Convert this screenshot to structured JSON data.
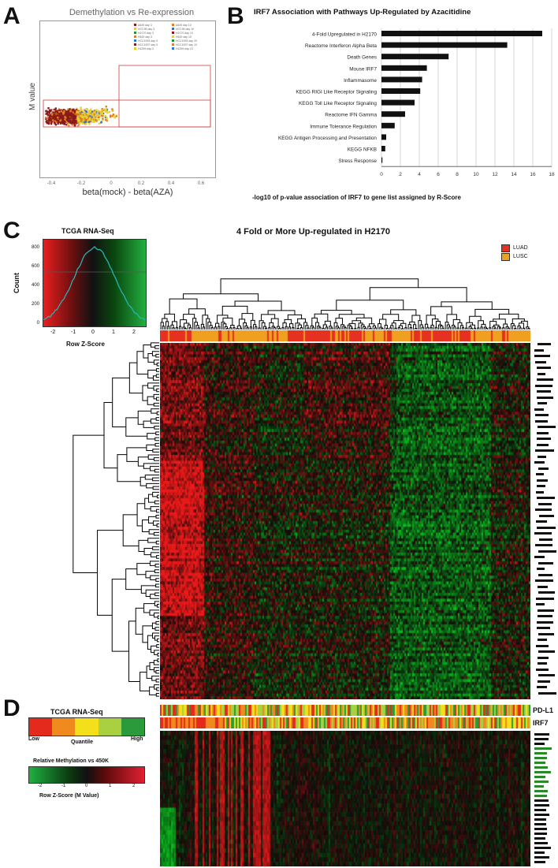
{
  "panels": {
    "a": "A",
    "b": "B",
    "c": "C",
    "d": "D"
  },
  "panel_a": {
    "title": "Demethylation vs Re-expression",
    "xlabel": "beta(mock) - beta(AZA)",
    "ylabel": "M value",
    "legend": [
      "A549 day 3",
      "A549 day 10",
      "HCC95 day 3",
      "HCC95 day 10",
      "H2170 day 3",
      "H2170 day 10",
      "H520 day 3",
      "H520 day 10",
      "HCC1993 day 3",
      "HCC1993 day 10",
      "HCC1937 day 3",
      "HCC1937 day 10",
      "H1299 day 3",
      "H1299 day 10"
    ],
    "colors": {
      "red": "#8b1a1a",
      "orange": "#e08020",
      "yellow": "#e8d030",
      "blue": "#3a70c8",
      "green": "#2a9040"
    }
  },
  "chart_data": {
    "type": "bar",
    "title": "IRF7 Association with Pathways Up-Regulated by Azacitidine",
    "xlabel": "-log10 of p-value association of IRF7 to gene list assigned by R-Score",
    "xlim": [
      0,
      18
    ],
    "xticks": [
      "0",
      "2",
      "4",
      "6",
      "8",
      "10",
      "12",
      "14",
      "16",
      "18"
    ],
    "categories": [
      "4-Fold Upregulated in H2170",
      "Reactome Interferon Alpha Beta",
      "Death Genes",
      "Mouse IRF7",
      "Inflammasome",
      "KEGG RIGI Like Receptor Signaling",
      "KEGG Toll Like Receptor Signaling",
      "Reactome IFN Gamma",
      "Immune Tolerance Regulation",
      "KEGG Antigen Processing and Presentation",
      "KEGG NFKB",
      "Stress Response"
    ],
    "values": [
      17.0,
      13.3,
      7.1,
      4.8,
      4.3,
      4.1,
      3.5,
      2.5,
      1.4,
      0.5,
      0.4,
      0.1
    ],
    "grid": true
  },
  "panel_c": {
    "title": "4 Fold or More Up-regulated in H2170",
    "density_title": "TCGA RNA-Seq",
    "density_xlabel": "Row Z-Score",
    "density_ylabel": "Count",
    "xticks": [
      "-2",
      "-1",
      "0",
      "1",
      "2"
    ],
    "yticks": [
      "0",
      "200",
      "400",
      "600",
      "800"
    ],
    "legend": [
      {
        "label": "LUAD",
        "color": "#e63020"
      },
      {
        "label": "LUSC",
        "color": "#f0a020"
      }
    ],
    "gene_count": 124
  },
  "panel_d": {
    "rnaseq_title": "TCGA RNA-Seq",
    "rnaseq_low": "Low",
    "rnaseq_high": "High",
    "rnaseq_mid": "Quantile",
    "meth_title": "Relative Methylation vs 450K",
    "meth_xlabel": "Row Z-Score (M Value)",
    "meth_ticks": [
      "-2",
      "-1",
      "0",
      "1",
      "2"
    ],
    "row_labels": [
      "PD-L1",
      "IRF7"
    ],
    "quantile_colors": [
      "#e42a1c",
      "#f18a1e",
      "#f4e01a",
      "#a8d040",
      "#2a9a3a"
    ]
  }
}
